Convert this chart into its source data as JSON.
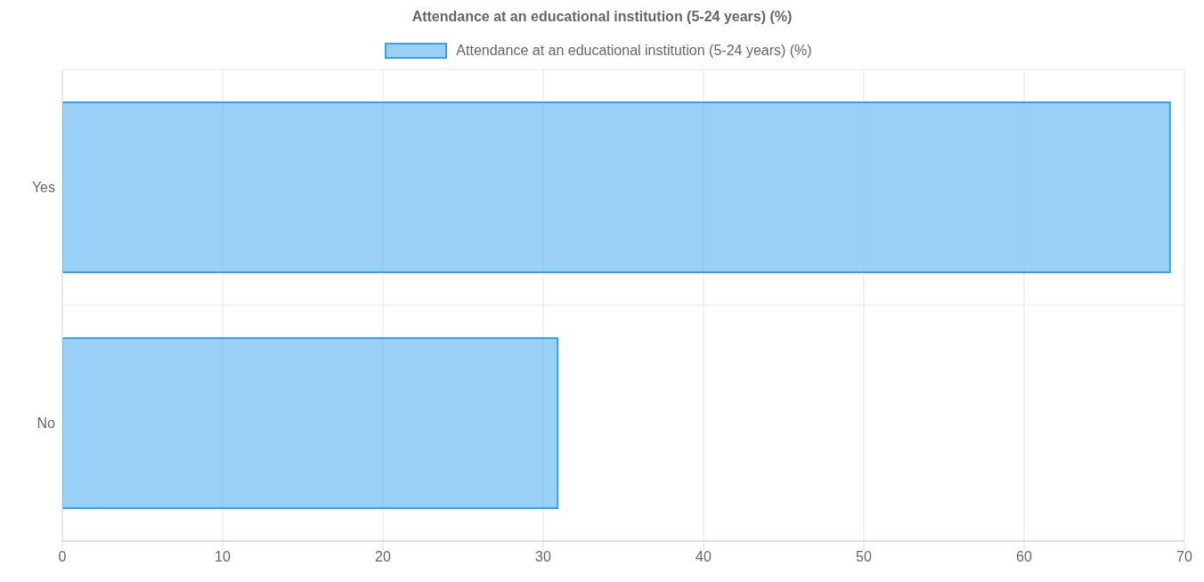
{
  "chart_data": {
    "type": "bar",
    "orientation": "horizontal",
    "title": "Attendance at an educational institution (5-24 years) (%)",
    "categories": [
      "Yes",
      "No"
    ],
    "series": [
      {
        "name": "Attendance at an educational institution (5-24 years) (%)",
        "color": "#36a2eb",
        "values": [
          69.1,
          30.9
        ]
      }
    ],
    "xlim": [
      0,
      70
    ],
    "xticks": [
      0,
      10,
      20,
      30,
      40,
      50,
      60,
      70
    ],
    "grid": true,
    "legend": "top"
  }
}
